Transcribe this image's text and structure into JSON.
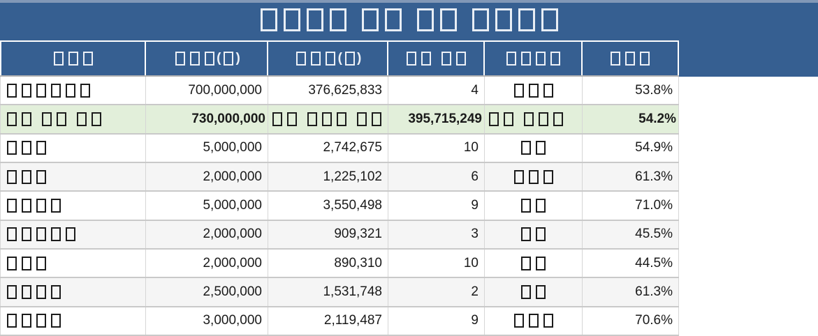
{
  "title": "□□□□ □□ □□ □□□□",
  "colors": {
    "banner_blue": "#365F91",
    "banner_top_strip": "#8298B7",
    "highlight_green": "#E2EFDA",
    "alt_row_gray": "#F5F5F5",
    "header_text": "#EDF1F7",
    "body_text": "#1a1a1a"
  },
  "table": {
    "columns": [
      {
        "label": "□□□",
        "align": "left"
      },
      {
        "label": "□□□(□)",
        "align": "right"
      },
      {
        "label": "□□□(□)",
        "align": "right"
      },
      {
        "label": "□□ □□",
        "align": "right"
      },
      {
        "label": "□□□□",
        "align": "center"
      },
      {
        "label": "□□□",
        "align": "right"
      }
    ],
    "rows": [
      {
        "highlight": false,
        "cells": [
          "□□□□□□",
          "700,000,000",
          "376,625,833",
          "4",
          "□□□",
          "53.8%"
        ]
      },
      {
        "highlight": true,
        "cells": [
          "□□ □□ □□",
          "730,000,000",
          "□□ □□□ □□",
          "395,715,249",
          "□□ □□□",
          "54.2%"
        ]
      },
      {
        "highlight": false,
        "cells": [
          "□□□",
          "5,000,000",
          "2,742,675",
          "10",
          "□□",
          "54.9%"
        ]
      },
      {
        "highlight": false,
        "cells": [
          "□□□",
          "2,000,000",
          "1,225,102",
          "6",
          "□□□",
          "61.3%"
        ]
      },
      {
        "highlight": false,
        "cells": [
          "□□□□",
          "5,000,000",
          "3,550,498",
          "9",
          "□□",
          "71.0%"
        ]
      },
      {
        "highlight": false,
        "cells": [
          "□□□□□",
          "2,000,000",
          "909,321",
          "3",
          "□□",
          "45.5%"
        ]
      },
      {
        "highlight": false,
        "cells": [
          "□□□",
          "2,000,000",
          "890,310",
          "10",
          "□□",
          "44.5%"
        ]
      },
      {
        "highlight": false,
        "cells": [
          "□□□□",
          "2,500,000",
          "1,531,748",
          "2",
          "□□",
          "61.3%"
        ]
      },
      {
        "highlight": false,
        "cells": [
          "□□□□",
          "3,000,000",
          "2,119,487",
          "9",
          "□□□",
          "70.6%"
        ]
      }
    ]
  }
}
